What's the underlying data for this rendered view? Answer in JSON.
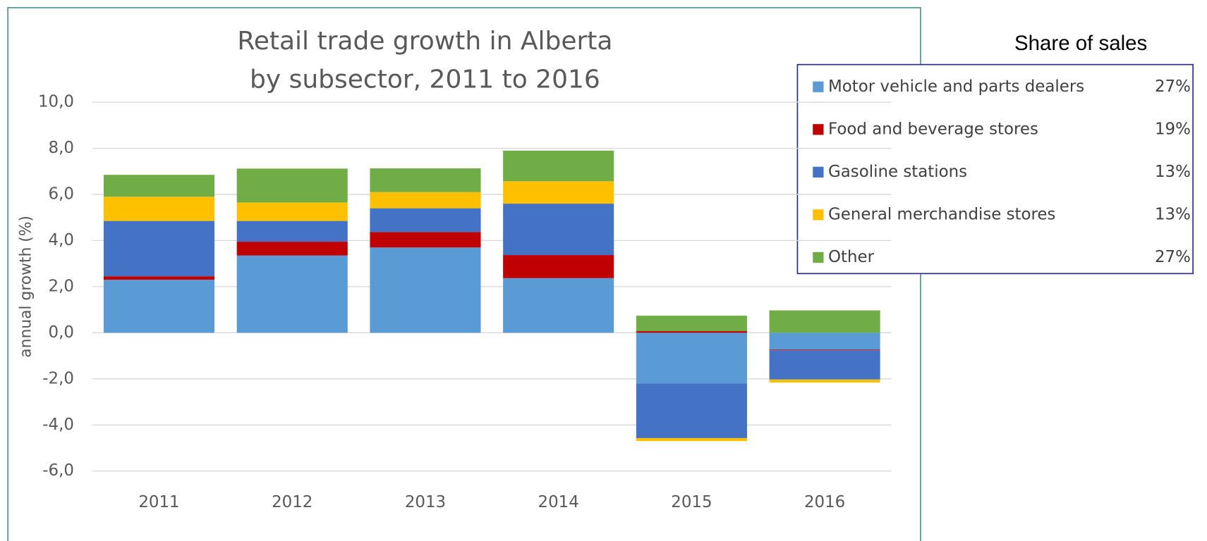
{
  "chart_data": {
    "type": "bar",
    "stacked": true,
    "title": [
      "Retail trade growth in Alberta",
      "by subsector, 2011 to 2016"
    ],
    "y_label": "annual growth (%)",
    "legend_title": "Share of sales",
    "categories": [
      "2011",
      "2012",
      "2013",
      "2014",
      "2015",
      "2016"
    ],
    "series": [
      {
        "name": "Motor vehicle and parts dealers",
        "share": "27%",
        "color": "#5b9bd5",
        "values": [
          2.3,
          3.35,
          3.7,
          2.37,
          -2.2,
          -0.73
        ]
      },
      {
        "name": "Food and beverage stores",
        "share": "19%",
        "color": "#c00000",
        "values": [
          0.15,
          0.6,
          0.67,
          1.0,
          0.07,
          -0.03
        ]
      },
      {
        "name": "Gasoline stations",
        "share": "13%",
        "color": "#4472c4",
        "values": [
          2.4,
          0.9,
          1.03,
          2.23,
          -2.37,
          -1.27
        ]
      },
      {
        "name": "General merchandise stores",
        "share": "13%",
        "color": "#ffc000",
        "values": [
          1.05,
          0.8,
          0.7,
          0.97,
          -0.13,
          -0.13
        ]
      },
      {
        "name": "Other",
        "share": "27%",
        "color": "#70ad47",
        "values": [
          0.95,
          1.47,
          1.03,
          1.33,
          0.67,
          0.97
        ]
      }
    ],
    "ylim": [
      -6,
      10
    ],
    "yticks": [
      {
        "value": -6,
        "label": "-6,0"
      },
      {
        "value": -4,
        "label": "-4,0"
      },
      {
        "value": -2,
        "label": "-2,0"
      },
      {
        "value": 0,
        "label": "0,0"
      },
      {
        "value": 2,
        "label": "2,0"
      },
      {
        "value": 4,
        "label": "4,0"
      },
      {
        "value": 6,
        "label": "6,0"
      },
      {
        "value": 8,
        "label": "8,0"
      },
      {
        "value": 10,
        "label": "10,0"
      }
    ],
    "grid": true
  }
}
